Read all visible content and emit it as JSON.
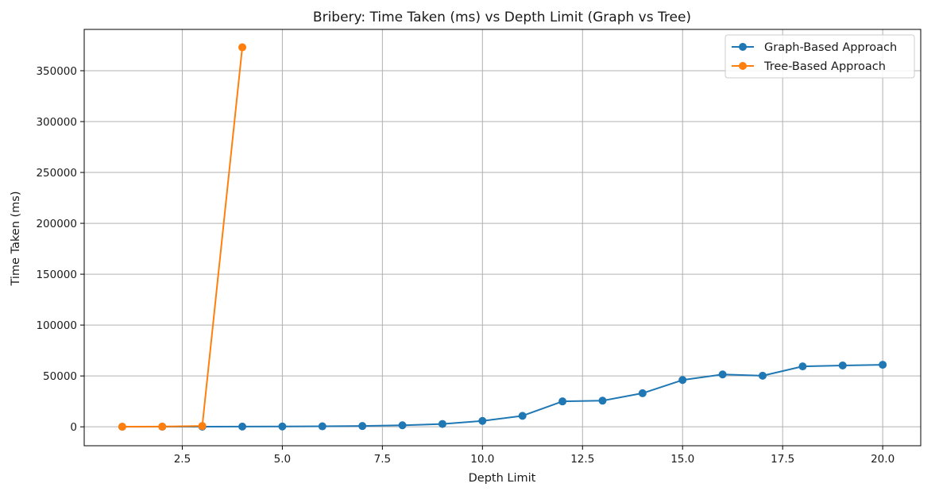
{
  "chart_data": {
    "type": "line",
    "title": "Bribery: Time Taken (ms) vs Depth Limit (Graph vs Tree)",
    "xlabel": "Depth Limit",
    "ylabel": "Time Taken (ms)",
    "xlim": [
      0.05,
      20.95
    ],
    "ylim": [
      -18600,
      390600
    ],
    "xticks": [
      2.5,
      5.0,
      7.5,
      10.0,
      12.5,
      15.0,
      17.5,
      20.0
    ],
    "xtick_labels": [
      "2.5",
      "5.0",
      "7.5",
      "10.0",
      "12.5",
      "15.0",
      "17.5",
      "20.0"
    ],
    "yticks": [
      0,
      50000,
      100000,
      150000,
      200000,
      250000,
      300000,
      350000
    ],
    "ytick_labels": [
      "0",
      "50000",
      "100000",
      "150000",
      "200000",
      "250000",
      "300000",
      "350000"
    ],
    "grid": true,
    "legend_position": "top-right",
    "series": [
      {
        "name": "Graph-Based Approach",
        "color": "#1f77b4",
        "x": [
          1,
          2,
          3,
          4,
          5,
          6,
          7,
          8,
          9,
          10,
          11,
          12,
          13,
          14,
          15,
          16,
          17,
          18,
          19,
          20
        ],
        "y": [
          50,
          100,
          150,
          250,
          350,
          500,
          800,
          1500,
          2800,
          5800,
          10800,
          25000,
          25700,
          33000,
          46000,
          51500,
          50200,
          59400,
          60300,
          61000
        ]
      },
      {
        "name": "Tree-Based Approach",
        "color": "#ff7f0e",
        "x": [
          1,
          2,
          3,
          4
        ],
        "y": [
          100,
          200,
          800,
          373000
        ]
      }
    ]
  }
}
